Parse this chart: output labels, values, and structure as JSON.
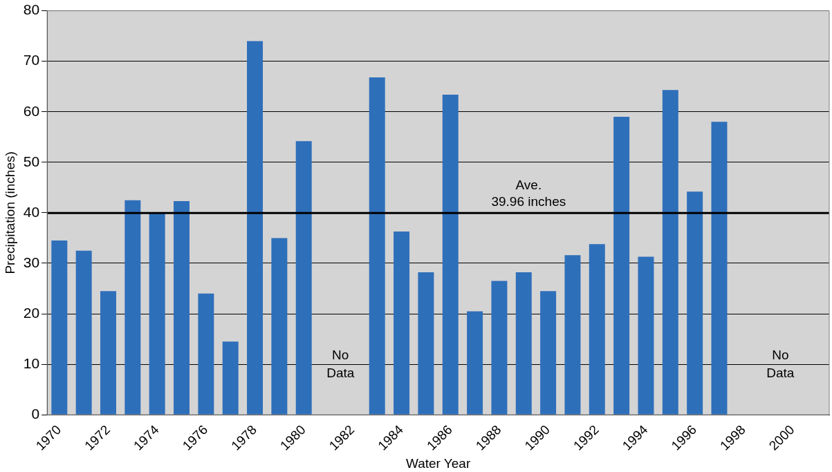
{
  "chart_data": {
    "type": "bar",
    "xlabel": "Water Year",
    "ylabel": "Precipitation (inches)",
    "categories": [
      "1970",
      null,
      "1972",
      null,
      "1974",
      null,
      "1976",
      null,
      "1978",
      null,
      "1980",
      null,
      "1982",
      null,
      "1984",
      null,
      "1986",
      null,
      "1988",
      null,
      "1990",
      null,
      "1992",
      null,
      "1994",
      null,
      "1996",
      null,
      "1998",
      null,
      "2000",
      null
    ],
    "values": [
      34.5,
      32.5,
      24.5,
      42.5,
      40,
      42.3,
      24,
      14.5,
      74,
      35,
      54.2,
      null,
      null,
      66.8,
      36.3,
      28.2,
      63.4,
      20.5,
      26.5,
      28.2,
      24.5,
      31.6,
      33.8,
      59,
      31.3,
      64.3,
      44.2,
      58,
      null,
      null,
      null,
      null
    ],
    "color": "#2e6fba",
    "ylim": [
      0,
      80
    ],
    "yticks": [
      0,
      10,
      20,
      30,
      40,
      50,
      60,
      70,
      80
    ],
    "grid": "y",
    "legend": false,
    "ref_lines": [
      {
        "axis": "y",
        "value": 39.96,
        "label": "Ave. 39.96 inches",
        "color": "#000000"
      }
    ],
    "annotations": [
      "No Data",
      "No Data"
    ]
  }
}
